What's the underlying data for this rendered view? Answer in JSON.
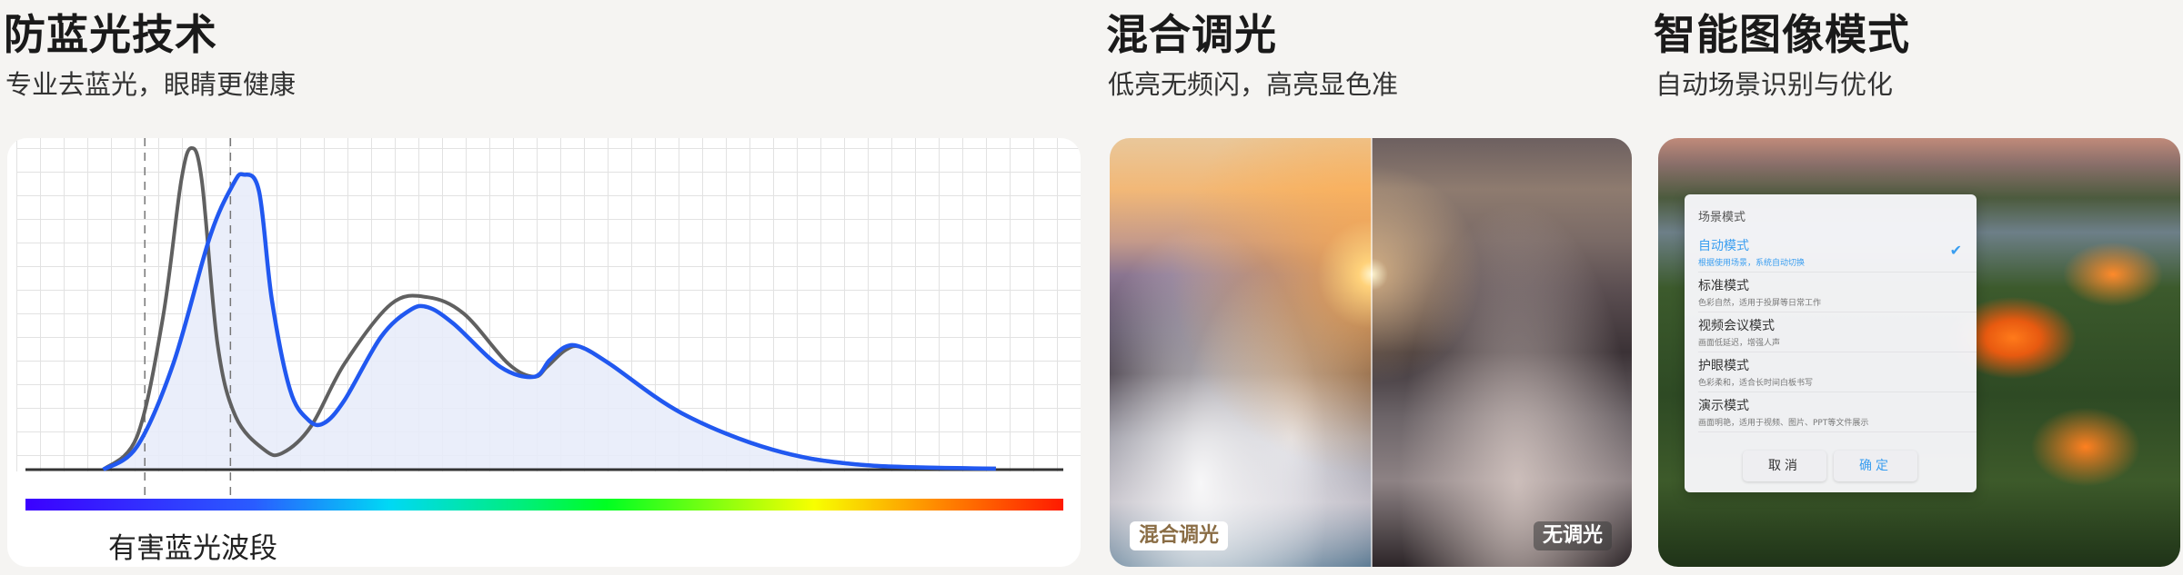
{
  "sections": [
    {
      "title": "防蓝光技术",
      "subtitle": "专业去蓝光，眼睛更健康"
    },
    {
      "title": "混合调光",
      "subtitle": "低亮无频闪，高亮显色准"
    },
    {
      "title": "智能图像模式",
      "subtitle": "自动场景识别与优化"
    }
  ],
  "chart_data": {
    "type": "line",
    "xlim": [
      380,
      780
    ],
    "ylim": [
      0,
      100
    ],
    "grid": true,
    "band_label": "有害蓝光波段",
    "band": [
      426,
      459
    ],
    "colors": {
      "gray": "#606060",
      "blue": "#2158f0",
      "fill": "#e8ecfa"
    },
    "series": [
      {
        "key": "gray",
        "points": [
          [
            410,
            0
          ],
          [
            423,
            10
          ],
          [
            433,
            46
          ],
          [
            440,
            87
          ],
          [
            444,
            97
          ],
          [
            448,
            87
          ],
          [
            454,
            38
          ],
          [
            461,
            16
          ],
          [
            472,
            6
          ],
          [
            479,
            5
          ],
          [
            490,
            13
          ],
          [
            503,
            32
          ],
          [
            521,
            50
          ],
          [
            535,
            52
          ],
          [
            549,
            47
          ],
          [
            566,
            32
          ],
          [
            576,
            28
          ],
          [
            581,
            31
          ],
          [
            588,
            36
          ],
          [
            594,
            37
          ]
        ]
      },
      {
        "key": "blue",
        "points": [
          [
            410,
            0
          ],
          [
            423,
            7
          ],
          [
            437,
            32
          ],
          [
            451,
            70
          ],
          [
            460,
            86
          ],
          [
            464,
            89
          ],
          [
            470,
            84
          ],
          [
            475,
            51
          ],
          [
            482,
            24
          ],
          [
            489,
            15
          ],
          [
            495,
            14
          ],
          [
            503,
            21
          ],
          [
            517,
            40
          ],
          [
            528,
            48
          ],
          [
            535,
            49
          ],
          [
            545,
            44
          ],
          [
            563,
            31
          ],
          [
            576,
            28
          ],
          [
            582,
            33
          ],
          [
            588,
            37
          ],
          [
            594,
            37
          ],
          [
            605,
            32
          ],
          [
            633,
            17
          ],
          [
            668,
            6
          ],
          [
            703,
            1.4
          ],
          [
            754,
            0.3
          ]
        ]
      }
    ]
  },
  "comparison": {
    "left_label": "混合调光",
    "right_label": "无调光"
  },
  "dialog": {
    "title": "场景模式",
    "options": [
      {
        "name": "自动模式",
        "desc": "根据使用场景，系统自动切换",
        "selected": true
      },
      {
        "name": "标准模式",
        "desc": "色彩自然，适用于投屏等日常工作"
      },
      {
        "name": "视频会议模式",
        "desc": "画面低延迟，增强人声"
      },
      {
        "name": "护眼模式",
        "desc": "色彩柔和，适合长时间白板书写"
      },
      {
        "name": "演示模式",
        "desc": "画面明艳，适用于视频、图片、PPT等文件展示"
      }
    ],
    "check": "✔",
    "cancel": "取消",
    "confirm": "确定"
  }
}
